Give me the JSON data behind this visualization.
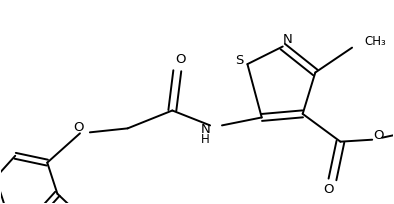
{
  "bg_color": "#ffffff",
  "line_color": "#000000",
  "line_width": 1.4,
  "font_size": 8.5,
  "figsize": [
    3.94,
    2.04
  ],
  "dpi": 100,
  "xlim": [
    0,
    394
  ],
  "ylim": [
    0,
    204
  ]
}
